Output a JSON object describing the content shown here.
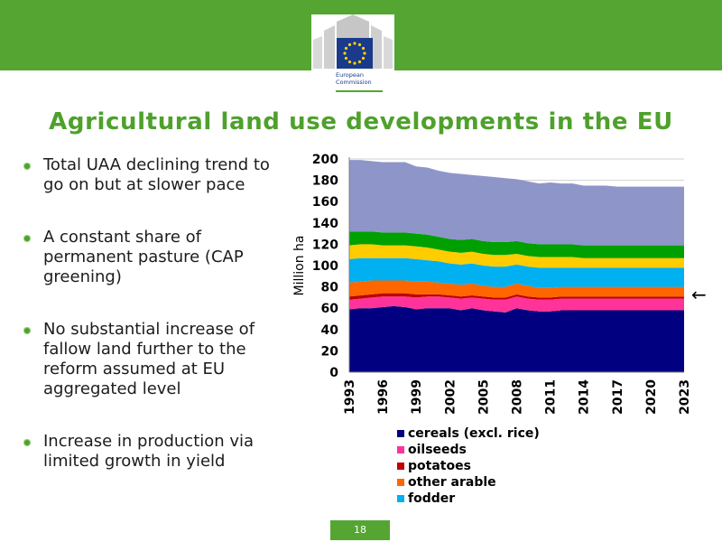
{
  "header": {
    "logo_line1": "European",
    "logo_line2": "Commission",
    "colors": {
      "bar": "#55a532",
      "flag": "#1a3a8c",
      "stars": "#ffd200"
    }
  },
  "title": "Agricultural land use developments in the EU",
  "bullets": [
    "Total UAA declining trend to go on but at slower pace",
    "A constant share of permanent pasture (CAP greening)",
    "No substantial increase of fallow land further to the reform assumed at EU aggregated level",
    "Increase in production via limited growth in yield"
  ],
  "arrow_symbol": "←",
  "page_number": "18",
  "chart_data": {
    "type": "area",
    "stacked": true,
    "ylabel": "Million ha",
    "xlabel": "",
    "ylim": [
      0,
      200
    ],
    "yticks": [
      0,
      20,
      40,
      60,
      80,
      100,
      120,
      140,
      160,
      180,
      200
    ],
    "xticks": [
      "1993",
      "1996",
      "1999",
      "2002",
      "2005",
      "2008",
      "2011",
      "2014",
      "2017",
      "2020",
      "2023"
    ],
    "x": [
      1993,
      1994,
      1995,
      1996,
      1997,
      1998,
      1999,
      2000,
      2001,
      2002,
      2003,
      2004,
      2005,
      2006,
      2007,
      2008,
      2009,
      2010,
      2011,
      2012,
      2013,
      2014,
      2015,
      2016,
      2017,
      2018,
      2019,
      2020,
      2021,
      2022,
      2023
    ],
    "series": [
      {
        "name": "cereals (excl. rice)",
        "color": "#000080",
        "values": [
          59,
          60,
          60,
          61,
          62,
          61,
          59,
          60,
          60,
          60,
          58,
          60,
          58,
          57,
          56,
          60,
          58,
          57,
          57,
          58,
          58,
          58,
          58,
          58,
          58,
          58,
          58,
          58,
          58,
          58,
          58
        ]
      },
      {
        "name": "oilseeds",
        "color": "#ff3399",
        "values": [
          9,
          9,
          10,
          10,
          9,
          10,
          11,
          11,
          11,
          10,
          11,
          10,
          11,
          11,
          12,
          11,
          11,
          11,
          11,
          11,
          11,
          11,
          11,
          11,
          11,
          11,
          11,
          11,
          11,
          11,
          11
        ]
      },
      {
        "name": "potatoes",
        "color": "#c00000",
        "values": [
          3,
          3,
          3,
          3,
          3,
          3,
          3,
          2,
          2,
          2,
          2,
          2,
          2,
          2,
          2,
          2,
          2,
          2,
          2,
          2,
          2,
          2,
          2,
          2,
          2,
          2,
          2,
          2,
          2,
          2,
          2
        ]
      },
      {
        "name": "other arable",
        "color": "#ff6600",
        "values": [
          13,
          13,
          13,
          12,
          12,
          12,
          12,
          12,
          11,
          11,
          11,
          11,
          10,
          10,
          10,
          10,
          10,
          9,
          9,
          9,
          9,
          9,
          9,
          9,
          9,
          9,
          9,
          9,
          9,
          9,
          9
        ]
      },
      {
        "name": "fodder",
        "color": "#00b0f0",
        "values": [
          22,
          22,
          21,
          21,
          21,
          21,
          21,
          20,
          20,
          19,
          19,
          19,
          19,
          19,
          19,
          18,
          18,
          19,
          19,
          18,
          18,
          18,
          18,
          18,
          18,
          18,
          18,
          18,
          18,
          18,
          18
        ]
      },
      {
        "name": "",
        "color": "#ffcc00",
        "values": [
          13,
          13,
          13,
          12,
          12,
          12,
          12,
          12,
          11,
          11,
          11,
          11,
          11,
          11,
          11,
          10,
          10,
          10,
          10,
          10,
          10,
          9,
          9,
          9,
          9,
          9,
          9,
          9,
          9,
          9,
          9
        ]
      },
      {
        "name": "",
        "color": "#00a000",
        "values": [
          13,
          12,
          12,
          12,
          12,
          12,
          12,
          12,
          12,
          12,
          12,
          12,
          12,
          12,
          12,
          12,
          12,
          12,
          12,
          12,
          12,
          12,
          12,
          12,
          12,
          12,
          12,
          12,
          12,
          12,
          12
        ]
      },
      {
        "name": "",
        "color": "#8e95c9",
        "values": [
          67,
          67,
          66,
          66,
          66,
          66,
          63,
          63,
          62,
          62,
          62,
          60,
          61,
          61,
          60,
          58,
          58,
          57,
          58,
          57,
          57,
          56,
          56,
          56,
          55,
          55,
          55,
          55,
          55,
          55,
          55
        ]
      }
    ],
    "grid": "horizontal",
    "legend_position": "bottom"
  }
}
